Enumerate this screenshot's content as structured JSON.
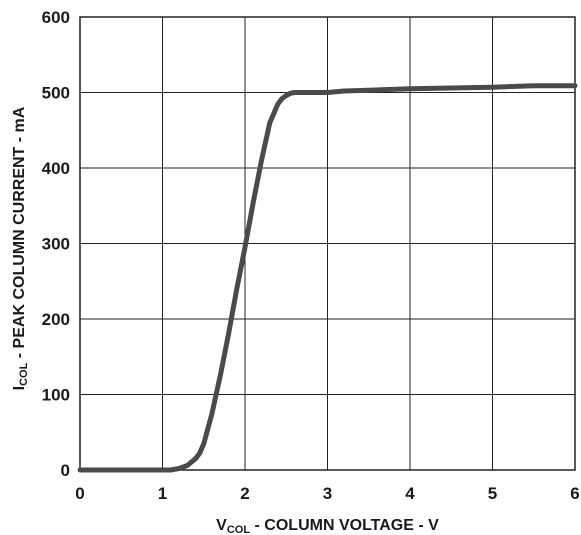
{
  "chart_data": {
    "type": "line",
    "title": "",
    "xlabel": {
      "main": "V",
      "sub": "COL",
      "rest": " - COLUMN VOLTAGE - V"
    },
    "ylabel": {
      "main": "I",
      "sub": "COL",
      "rest": " - PEAK COLUMN CURRENT - mA"
    },
    "xlim": [
      0,
      6
    ],
    "ylim": [
      0,
      600
    ],
    "xticks": [
      0,
      1,
      2,
      3,
      4,
      5,
      6
    ],
    "yticks": [
      0,
      100,
      200,
      300,
      400,
      500,
      600
    ],
    "grid": true,
    "line_color": "#4a4a4a",
    "series": [
      {
        "x": [
          0,
          0.5,
          1.0,
          1.1,
          1.2,
          1.3,
          1.4,
          1.45,
          1.5,
          1.55,
          1.6,
          1.65,
          1.7,
          1.8,
          1.9,
          2.0,
          2.1,
          2.2,
          2.3,
          2.4,
          2.45,
          2.5,
          2.55,
          2.6,
          2.7,
          2.8,
          3.0,
          3.2,
          3.5,
          4.0,
          4.5,
          5.0,
          5.5,
          6.0
        ],
        "y": [
          0,
          0,
          0,
          0,
          2,
          6,
          15,
          22,
          35,
          55,
          75,
          100,
          125,
          180,
          240,
          295,
          355,
          410,
          460,
          485,
          492,
          496,
          499,
          500,
          500,
          500,
          500,
          502,
          503,
          505,
          506,
          507,
          509,
          509
        ]
      }
    ]
  }
}
